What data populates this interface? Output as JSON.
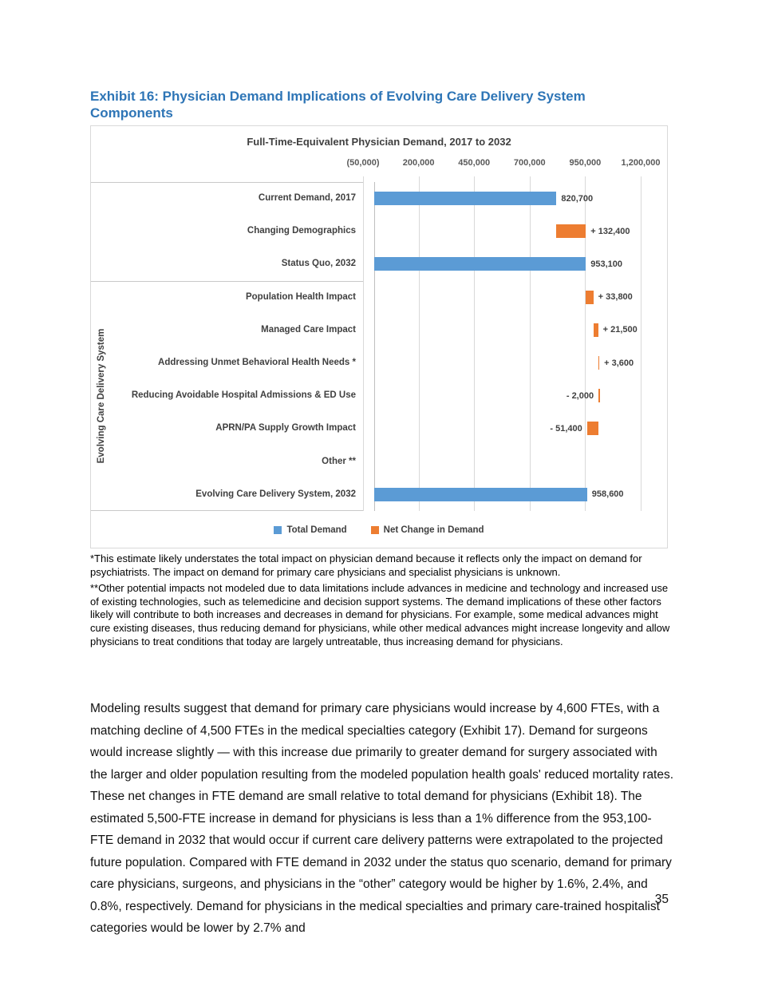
{
  "page": {
    "heading": "Exhibit 16: Physician Demand Implications of Evolving Care Delivery System Components",
    "footnote1": "*This estimate likely understates the total impact on physician demand because it reflects only the impact on demand for psychiatrists. The impact on demand for primary care physicians and specialist physicians is unknown.",
    "footnote2": "**Other potential impacts not modeled due to data limitations include advances in medicine and technology and increased use of existing technologies, such as telemedicine and decision support systems. The demand implications of these other factors likely will contribute to both increases and decreases in demand for physicians. For example, some medical advances might cure existing diseases, thus reducing demand for physicians, while other medical advances might increase longevity and allow physicians to treat conditions that today are largely untreatable, thus increasing demand for physicians.",
    "body_paragraph": "Modeling results suggest that demand for primary care physicians would increase by 4,600 FTEs, with a matching decline of 4,500 FTEs in the medical specialties category (Exhibit 17). Demand for surgeons would increase slightly — with this increase due primarily to greater demand for surgery associated with the larger and older population resulting from the modeled population health goals' reduced mortality rates. These net changes in FTE demand are small relative to total demand for physicians (Exhibit 18). The estimated 5,500-FTE increase in demand for physicians is less than a 1% difference from the 953,100-FTE demand in 2032 that would occur if current care delivery patterns were extrapolated to the projected future population. Compared with FTE demand in 2032 under the status quo scenario, demand for primary care physicians, surgeons, and physicians in the “other” category would be higher by 1.6%, 2.4%, and 0.8%, respectively. Demand for physicians in the medical specialties and primary care-trained hospitalist categories would be lower by 2.7% and",
    "page_number": "35"
  },
  "chart_data": {
    "type": "bar",
    "orientation": "horizontal-waterfall",
    "title": "Full-Time-Equivalent Physician Demand, 2017 to 2032",
    "group_label": "Evolving Care Delivery System",
    "axis": {
      "min": -50000,
      "max": 1200000,
      "position": "top",
      "grid": true,
      "ticks": [
        {
          "value": -50000,
          "label": "(50,000)"
        },
        {
          "value": 200000,
          "label": "200,000"
        },
        {
          "value": 450000,
          "label": "450,000"
        },
        {
          "value": 700000,
          "label": "700,000"
        },
        {
          "value": 950000,
          "label": "950,000"
        },
        {
          "value": 1200000,
          "label": "1,200,000"
        }
      ]
    },
    "legend_position": "bottom",
    "legend": [
      {
        "name": "Total Demand",
        "color": "#5B9BD5"
      },
      {
        "name": "Net Change in Demand",
        "color": "#ED7D31"
      }
    ],
    "rows": [
      {
        "category": "Current Demand, 2017",
        "series": "Total Demand",
        "start": 0,
        "end": 820700,
        "value": 820700,
        "label": "820,700",
        "label_side": "right",
        "group": false
      },
      {
        "category": "Changing Demographics",
        "series": "Net Change in Demand",
        "start": 820700,
        "end": 953100,
        "value": 132400,
        "label": "+ 132,400",
        "label_side": "right",
        "group": false
      },
      {
        "category": "Status Quo, 2032",
        "series": "Total Demand",
        "start": 0,
        "end": 953100,
        "value": 953100,
        "label": "953,100",
        "label_side": "right",
        "group": false
      },
      {
        "category": "Population Health Impact",
        "series": "Net Change in Demand",
        "start": 953100,
        "end": 986900,
        "value": 33800,
        "label": "+ 33,800",
        "label_side": "right",
        "group": true
      },
      {
        "category": "Managed Care Impact",
        "series": "Net Change in Demand",
        "start": 986900,
        "end": 1008400,
        "value": 21500,
        "label": "+ 21,500",
        "label_side": "right",
        "group": true
      },
      {
        "category": "Addressing Unmet Behavioral Health Needs *",
        "series": "Net Change in Demand",
        "start": 1008400,
        "end": 1012000,
        "value": 3600,
        "label": "+ 3,600",
        "label_side": "right",
        "group": true
      },
      {
        "category": "Reducing Avoidable Hospital Admissions & ED Use",
        "series": "Net Change in Demand",
        "start": 1010000,
        "end": 1012000,
        "value": -2000,
        "label": "- 2,000",
        "label_side": "left",
        "group": true
      },
      {
        "category": "APRN/PA Supply Growth Impact",
        "series": "Net Change in Demand",
        "start": 958600,
        "end": 1010000,
        "value": -51400,
        "label": "- 51,400",
        "label_side": "left",
        "group": true
      },
      {
        "category": "Other **",
        "series": null,
        "start": null,
        "end": null,
        "value": null,
        "label": "",
        "label_side": "right",
        "group": true
      },
      {
        "category": "Evolving Care Delivery System, 2032",
        "series": "Total Demand",
        "start": 0,
        "end": 958600,
        "value": 958600,
        "label": "958,600",
        "label_side": "right",
        "group": true
      }
    ]
  },
  "colors": {
    "heading": "#2E75B6",
    "bar_blue": "#5B9BD5",
    "bar_orange": "#ED7D31",
    "gridline": "#D9D9D9",
    "chart_text": "#404040",
    "axis_text": "#595959"
  }
}
